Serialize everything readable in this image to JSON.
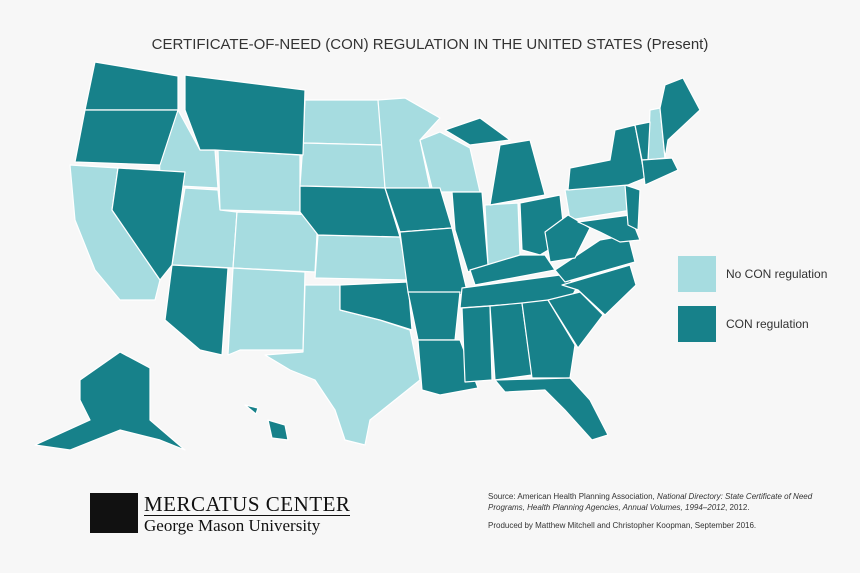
{
  "title": "CERTIFICATE-OF-NEED (CON) REGULATION IN THE UNITED STATES (Present)",
  "legend": [
    {
      "label": "No CON regulation",
      "color": "#a6dce0"
    },
    {
      "label": "CON regulation",
      "color": "#17818a"
    }
  ],
  "logo": {
    "name": "MERCATUS CENTER",
    "affiliation": "George Mason University"
  },
  "source": {
    "prefix": "Source: American Health Planning Association, ",
    "title": "National Directory: State Certificate of Need Programs, Health Planning Agencies, Annual Volumes, 1994–2012",
    "suffix": ", 2012."
  },
  "credit": "Produced by Matthew Mitchell and Christopher Koopman, September 2016."
}
